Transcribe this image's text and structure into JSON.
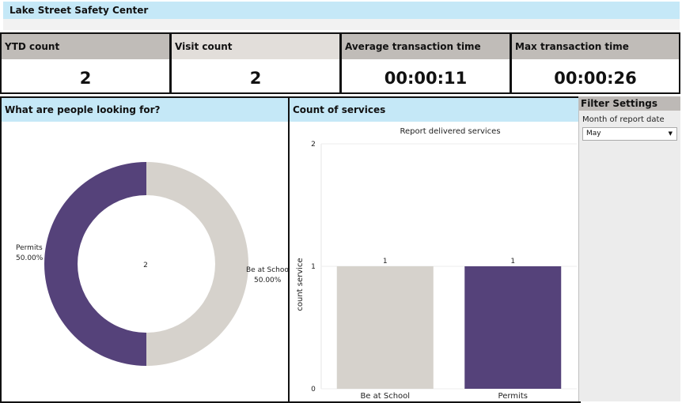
{
  "header": {
    "title": "Lake Street Safety Center"
  },
  "kpis": [
    {
      "label": "YTD count",
      "value": "2"
    },
    {
      "label": "Visit count",
      "value": "2"
    },
    {
      "label": "Average transaction time",
      "value": "00:00:11"
    },
    {
      "label": "Max transaction time",
      "value": "00:00:26"
    }
  ],
  "donut_panel": {
    "title": "What are people looking for?",
    "center_label": "2"
  },
  "bar_panel": {
    "title": "Count of services"
  },
  "filter": {
    "title": "Filter Settings",
    "label": "Month of report date",
    "selected": "May",
    "caret_icon": "caret-down-icon"
  },
  "colors": {
    "purple": "#55427a",
    "beige": "#d6d2cc",
    "header_blue": "#c5e8f7",
    "kpi_head": "#c0bcb8"
  },
  "chart_data": [
    {
      "type": "pie",
      "title": "",
      "categories": [
        "Be at School",
        "Permits"
      ],
      "values": [
        1,
        1
      ],
      "percent_labels": [
        "50.00%",
        "50.00%"
      ],
      "colors": [
        "#d6d2cc",
        "#55427a"
      ]
    },
    {
      "type": "bar",
      "title": "Report delivered services",
      "categories": [
        "Be at School",
        "Permits"
      ],
      "values": [
        1,
        1
      ],
      "data_labels": [
        "1",
        "1"
      ],
      "xlabel": "",
      "ylabel": "count service",
      "ylim": [
        0,
        2
      ],
      "yticks": [
        "0",
        "1",
        "2"
      ],
      "colors": [
        "#d6d2cc",
        "#55427a"
      ],
      "grid": true
    }
  ]
}
